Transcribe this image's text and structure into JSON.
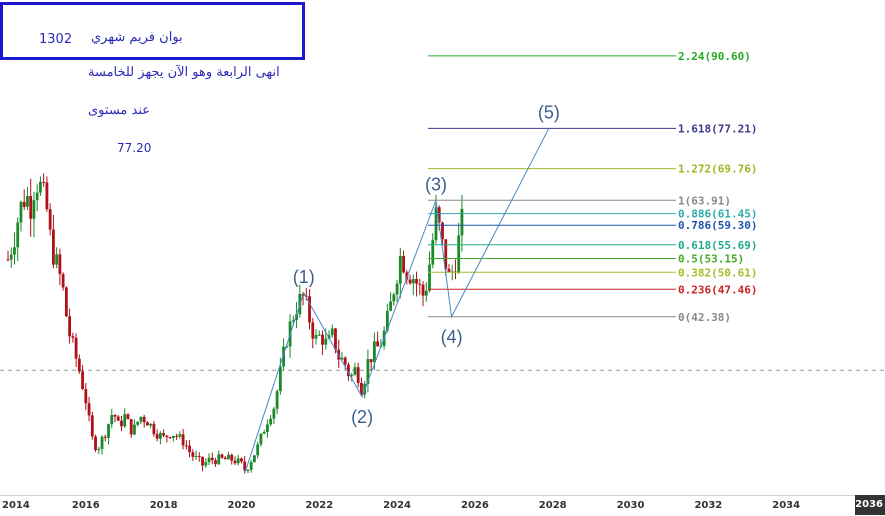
{
  "chart_data": {
    "type": "candlestick",
    "x_axis": {
      "ticks": [
        "2014",
        "2016",
        "2018",
        "2020",
        "2022",
        "2024",
        "2026",
        "2028",
        "2030",
        "2032",
        "2034",
        "2036"
      ],
      "range": [
        2014,
        2036.4
      ]
    },
    "y_range": [
      10,
      100
    ],
    "reference_line_value": 32.5,
    "fib_levels": [
      {
        "ratio": "2.24",
        "value": 90.6,
        "color": "#22aa22"
      },
      {
        "ratio": "1.618",
        "value": 77.21,
        "color": "#3a3a8c"
      },
      {
        "ratio": "1.272",
        "value": 69.76,
        "color": "#99bb22"
      },
      {
        "ratio": "1",
        "value": 63.91,
        "color": "#888888"
      },
      {
        "ratio": "0.886",
        "value": 61.45,
        "color": "#33aaaa"
      },
      {
        "ratio": "0.786",
        "value": 59.3,
        "color": "#2255aa"
      },
      {
        "ratio": "0.618",
        "value": 55.69,
        "color": "#22aa88"
      },
      {
        "ratio": "0.5",
        "value": 53.15,
        "color": "#44aa22"
      },
      {
        "ratio": "0.382",
        "value": 50.61,
        "color": "#aabb22"
      },
      {
        "ratio": "0.236",
        "value": 47.46,
        "color": "#cc2222"
      },
      {
        "ratio": "0",
        "value": 42.38,
        "color": "#888888"
      }
    ],
    "waves": [
      {
        "label": "(1)",
        "x": 2021.6,
        "y": 46.8
      },
      {
        "label": "(2)",
        "x": 2023.1,
        "y": 27.6
      },
      {
        "label": "(3)",
        "x": 2025.0,
        "y": 63.91
      },
      {
        "label": "(4)",
        "x": 2025.4,
        "y": 42.38
      },
      {
        "label": "(5)",
        "x": 2027.9,
        "y": 77.21
      }
    ],
    "wave_path_start": {
      "x": 2020.1,
      "y": 13.8
    },
    "price_path": [
      [
        2014.0,
        53
      ],
      [
        2014.15,
        57
      ],
      [
        2014.3,
        62
      ],
      [
        2014.45,
        65
      ],
      [
        2014.6,
        63
      ],
      [
        2014.7,
        68
      ],
      [
        2014.85,
        66
      ],
      [
        2015.0,
        62
      ],
      [
        2015.1,
        56
      ],
      [
        2015.25,
        52
      ],
      [
        2015.4,
        48
      ],
      [
        2015.55,
        40
      ],
      [
        2015.7,
        36
      ],
      [
        2015.85,
        32
      ],
      [
        2016.0,
        27
      ],
      [
        2016.15,
        20
      ],
      [
        2016.3,
        18
      ],
      [
        2016.5,
        21
      ],
      [
        2016.7,
        25
      ],
      [
        2016.85,
        22
      ],
      [
        2017.0,
        24
      ],
      [
        2017.2,
        21
      ],
      [
        2017.4,
        24
      ],
      [
        2017.6,
        23
      ],
      [
        2017.8,
        21
      ],
      [
        2018.0,
        20
      ],
      [
        2018.2,
        21
      ],
      [
        2018.4,
        20
      ],
      [
        2018.55,
        19
      ],
      [
        2018.7,
        17
      ],
      [
        2018.85,
        16
      ],
      [
        2019.0,
        15
      ],
      [
        2019.2,
        16
      ],
      [
        2019.4,
        16
      ],
      [
        2019.6,
        16
      ],
      [
        2019.8,
        16
      ],
      [
        2020.0,
        15
      ],
      [
        2020.1,
        14
      ],
      [
        2020.25,
        16
      ],
      [
        2020.4,
        18
      ],
      [
        2020.55,
        21
      ],
      [
        2020.7,
        24
      ],
      [
        2020.85,
        26
      ],
      [
        2021.0,
        32
      ],
      [
        2021.15,
        38
      ],
      [
        2021.3,
        42
      ],
      [
        2021.45,
        45
      ],
      [
        2021.6,
        46
      ],
      [
        2021.75,
        42
      ],
      [
        2021.9,
        38
      ],
      [
        2022.05,
        39
      ],
      [
        2022.2,
        37
      ],
      [
        2022.35,
        39
      ],
      [
        2022.5,
        35
      ],
      [
        2022.65,
        34
      ],
      [
        2022.8,
        31
      ],
      [
        2022.95,
        33
      ],
      [
        2023.1,
        29
      ],
      [
        2023.25,
        34
      ],
      [
        2023.4,
        36
      ],
      [
        2023.55,
        37
      ],
      [
        2023.7,
        40
      ],
      [
        2023.85,
        45
      ],
      [
        2023.95,
        49
      ],
      [
        2024.1,
        54
      ],
      [
        2024.25,
        51
      ],
      [
        2024.4,
        50
      ],
      [
        2024.55,
        48
      ],
      [
        2024.7,
        46
      ],
      [
        2024.85,
        53
      ],
      [
        2025.0,
        61
      ],
      [
        2025.1,
        58
      ],
      [
        2025.2,
        54
      ],
      [
        2025.35,
        49
      ],
      [
        2025.5,
        53
      ],
      [
        2025.6,
        57
      ],
      [
        2025.7,
        61
      ]
    ],
    "annotations": [
      "بوان فريم شهري",
      "1302",
      "انهى الرابعة وهو الآن يجهز للخامسة",
      "عند مستوى",
      "77.20"
    ]
  }
}
